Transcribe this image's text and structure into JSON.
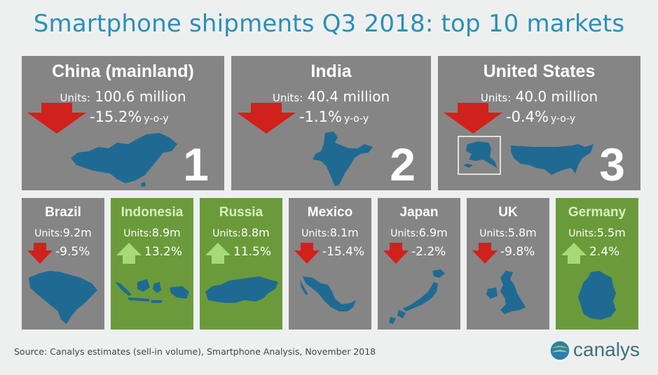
{
  "chart_data": {
    "type": "table",
    "title": "Smartphone shipments Q3 2018: top 10 markets",
    "units_label": "Units:",
    "yoy_label": "y-o-y",
    "markets": [
      {
        "rank": "1",
        "name": "China (mainland)",
        "units": "100.6 million",
        "change": "-15.2%",
        "units_value": 100.6,
        "change_value": -15.2,
        "direction": "down"
      },
      {
        "rank": "2",
        "name": "India",
        "units": "40.4 million",
        "change": "-1.1%",
        "units_value": 40.4,
        "change_value": -1.1,
        "direction": "down"
      },
      {
        "rank": "3",
        "name": "United States",
        "units": "40.0 million",
        "change": "-0.4%",
        "units_value": 40.0,
        "change_value": -0.4,
        "direction": "down"
      },
      {
        "name": "Brazil",
        "units": "9.2m",
        "change": "-9.5%",
        "units_value": 9.2,
        "change_value": -9.5,
        "direction": "down"
      },
      {
        "name": "Indonesia",
        "units": "8.9m",
        "change": "13.2%",
        "units_value": 8.9,
        "change_value": 13.2,
        "direction": "up"
      },
      {
        "name": "Russia",
        "units": "8.8m",
        "change": "11.5%",
        "units_value": 8.8,
        "change_value": 11.5,
        "direction": "up"
      },
      {
        "name": "Mexico",
        "units": "8.1m",
        "change": "-15.4%",
        "units_value": 8.1,
        "change_value": -15.4,
        "direction": "down"
      },
      {
        "name": "Japan",
        "units": "6.9m",
        "change": "-2.2%",
        "units_value": 6.9,
        "change_value": -2.2,
        "direction": "down"
      },
      {
        "name": "UK",
        "units": "5.8m",
        "change": "-9.8%",
        "units_value": 5.8,
        "change_value": -9.8,
        "direction": "down"
      },
      {
        "name": "Germany",
        "units": "5.5m",
        "change": "2.4%",
        "units_value": 5.5,
        "change_value": 2.4,
        "direction": "up"
      }
    ]
  },
  "source": "Source: Canalys estimates (sell-in volume), Smartphone Analysis, November 2018",
  "brand": "canalys",
  "colors": {
    "title": "#2a8fb8",
    "decline_card": "#858585",
    "growth_card": "#6b9a3a",
    "down_arrow": "#d0211c",
    "up_arrow": "#a6d977",
    "map_fill": "#1f6a93"
  },
  "icons": {
    "down": "red-down-arrow-icon",
    "up": "green-up-arrow-icon"
  }
}
